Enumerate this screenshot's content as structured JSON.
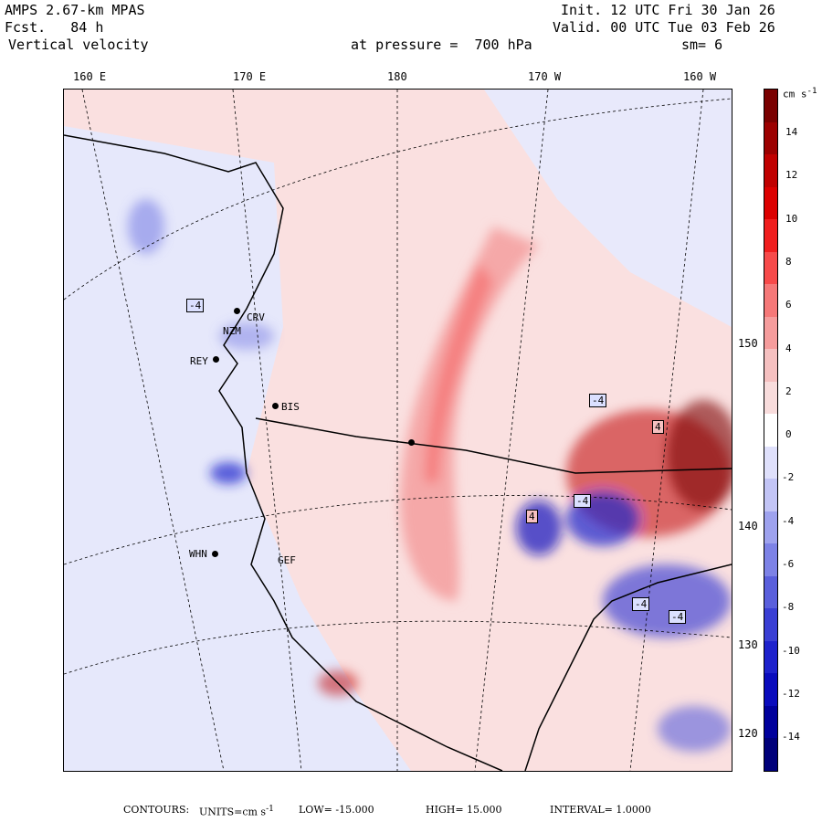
{
  "header": {
    "model": "AMPS 2.67-km MPAS",
    "forecast_label": "Fcst.",
    "forecast_hours": "84 h",
    "field": "Vertical velocity",
    "init": "Init. 12 UTC Fri 30 Jan 26",
    "valid": "Valid. 00 UTC Tue 03 Feb 26",
    "pressure_label": "at pressure =",
    "pressure_value": "700 hPa",
    "smoothing": "sm= 6"
  },
  "longitude_labels": [
    "160 E",
    "170 E",
    "180",
    "170 W",
    "160 W"
  ],
  "latitude_labels": [
    "150 W",
    "140 W",
    "130 W",
    "120 W"
  ],
  "stations": [
    "CRV",
    "NZM",
    "REY",
    "BIS",
    "WHN",
    "GEF"
  ],
  "contour_labels": [
    "-4",
    "-4",
    "4",
    "-4",
    "4",
    "-4",
    "-4"
  ],
  "colorbar": {
    "unit_label": "cm s",
    "unit_exponent": "-1",
    "ticks": [
      "14",
      "12",
      "10",
      "8",
      "6",
      "4",
      "2",
      "0",
      "-2",
      "-4",
      "-6",
      "-8",
      "-10",
      "-12",
      "-14"
    ],
    "colors": [
      "#7a0000",
      "#9c0000",
      "#c00000",
      "#dc0000",
      "#f01e1e",
      "#f74a4a",
      "#f57878",
      "#f59c9c",
      "#f5c0c0",
      "#f8dcdc",
      "#ffffff",
      "#dfe0fb",
      "#c2c4f5",
      "#9ea2ee",
      "#7d82e6",
      "#5a5fdc",
      "#3a3fd4",
      "#1e22cc",
      "#0a0cbd",
      "#00009c",
      "#00007a"
    ]
  },
  "footer": {
    "contours_label": "CONTOURS:",
    "units_label": "UNITS=cm s",
    "units_exponent": "-1",
    "low_label": "LOW=",
    "low_value": "-15.000",
    "high_label": "HIGH=",
    "high_value": "15.000",
    "interval_label": "INTERVAL=",
    "interval_value": "1.0000"
  }
}
